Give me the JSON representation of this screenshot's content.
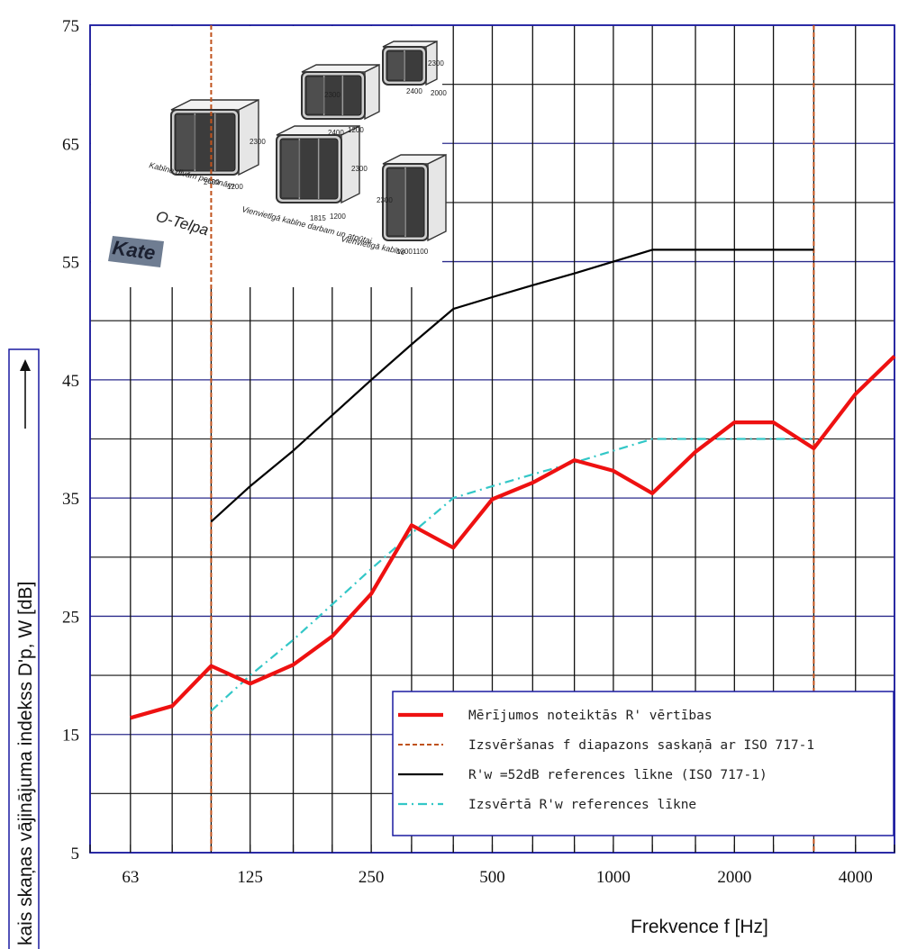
{
  "chart_data": {
    "type": "line",
    "title": "",
    "xlabel": "Frekvence  f [Hz]",
    "ylabel": "kais skaņas vājinājuma indekss D'p, W [dB]",
    "x_scale": "log (one-third-octave bands)",
    "x_bands": [
      50,
      63,
      80,
      100,
      125,
      160,
      200,
      250,
      315,
      400,
      500,
      630,
      800,
      1000,
      1250,
      1600,
      2000,
      2500,
      3150,
      4000,
      5000
    ],
    "x_tick_labels": [
      "63",
      "125",
      "250",
      "500",
      "1000",
      "2000",
      "4000"
    ],
    "y_ticks": [
      "5",
      "15",
      "25",
      "35",
      "45",
      "55",
      "65",
      "75"
    ],
    "ylim": [
      5,
      75
    ],
    "grid": true,
    "legend_position": "bottom-right",
    "series": [
      {
        "name": "Mērījumos noteiktās R' vērtības",
        "color": "#ee1111",
        "style": "solid-thick",
        "x": [
          63,
          80,
          100,
          125,
          160,
          200,
          250,
          315,
          400,
          500,
          630,
          800,
          1000,
          1250,
          1600,
          2000,
          2500,
          3150,
          4000,
          5000
        ],
        "y": [
          16.4,
          17.4,
          20.8,
          19.3,
          20.9,
          23.3,
          26.9,
          32.7,
          30.8,
          34.9,
          36.3,
          38.2,
          37.3,
          35.4,
          38.9,
          41.4,
          41.4,
          39.2,
          43.8,
          47.0
        ]
      },
      {
        "name": "Izsvēršanas f diapazons saskaņā ar ISO 717-1",
        "color": "#c0521c",
        "style": "dashed-vertical",
        "x": [
          100,
          3150
        ]
      },
      {
        "name": "R'w =52dB references līkne (ISO 717-1)",
        "color": "#000000",
        "style": "solid",
        "x": [
          100,
          125,
          160,
          200,
          250,
          315,
          400,
          500,
          630,
          800,
          1000,
          1250,
          1600,
          2000,
          2500,
          3150
        ],
        "y": [
          33,
          36,
          39,
          42,
          45,
          48,
          51,
          52,
          53,
          54,
          55,
          56,
          56,
          56,
          56,
          56
        ]
      },
      {
        "name": "Izsvērtā R'w  references līkne",
        "color": "#33c7c7",
        "style": "dash-dot",
        "x": [
          100,
          125,
          160,
          200,
          250,
          315,
          400,
          500,
          630,
          800,
          1000,
          1250,
          1600,
          2000,
          2500,
          3150
        ],
        "y": [
          17,
          20,
          23,
          26,
          29,
          32,
          35,
          36,
          37,
          38,
          39,
          40,
          40,
          40,
          40,
          40
        ]
      }
    ],
    "inset": {
      "brand": "O-Telpa",
      "logo": "Kate",
      "products": [
        {
          "caption": "Kabīne divām personām",
          "dims": [
            "2400",
            "1200",
            "2300"
          ]
        },
        {
          "caption": "Vienvietīgā kabīne darbam un atpūtai",
          "dims": [
            "1815",
            "1200",
            "2300"
          ]
        },
        {
          "caption": "Vienvietīgā kabīne",
          "dims": [
            "1200",
            "1100",
            "2300"
          ]
        },
        {
          "caption": "",
          "dims": [
            "2400",
            "1200",
            "2300"
          ]
        },
        {
          "caption": "",
          "dims": [
            "2400",
            "2000",
            "2300"
          ]
        }
      ]
    }
  }
}
